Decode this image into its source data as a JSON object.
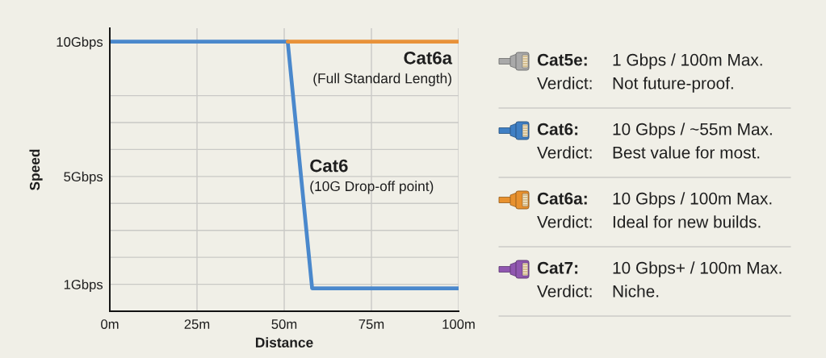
{
  "chart_data": [
    {
      "type": "line",
      "xlabel": "Distance",
      "ylabel": "Speed",
      "series": [
        {
          "name": "Cat6",
          "color": "#4a88cc",
          "x": [
            0,
            51,
            58,
            100
          ],
          "values": [
            10,
            10,
            0.85,
            0.85
          ]
        },
        {
          "name": "Cat6a",
          "color": "#e8923a",
          "x": [
            51,
            100
          ],
          "values": [
            10,
            10
          ]
        }
      ],
      "xlim": [
        0,
        100
      ],
      "xticks": [
        {
          "value": 0,
          "label": "0m"
        },
        {
          "value": 25,
          "label": "25m"
        },
        {
          "value": 50,
          "label": "50m"
        },
        {
          "value": 75,
          "label": "75m"
        },
        {
          "value": 100,
          "label": "100m"
        }
      ],
      "ylim": [
        0,
        10.5
      ],
      "yticks": [
        {
          "value": 1,
          "label": "1Gbps"
        },
        {
          "value": 2,
          "label": null
        },
        {
          "value": 3,
          "label": null
        },
        {
          "value": 4,
          "label": null
        },
        {
          "value": 5,
          "label": "5Gbps"
        },
        {
          "value": 6,
          "label": null
        },
        {
          "value": 7,
          "label": null
        },
        {
          "value": 8,
          "label": null
        },
        {
          "value": 10,
          "label": "10Gbps"
        }
      ],
      "grid": true,
      "annotations": [
        {
          "text": "(10G Drop-off point)",
          "x": 54,
          "y": 6
        },
        {
          "text": "(Full Standard Length)",
          "x": 100,
          "y": 10
        }
      ]
    },
    {
      "type": "other",
      "colors": [
        "#a9a9a9",
        "#3f7fc4",
        "#e8912e",
        "#9057b0"
      ],
      "annotations": [
        "Cat5e:",
        "1 Gbps / 100m Max.",
        "Verdict:",
        "Not future-proof.",
        "Cat6:",
        "10 Gbps / ~55m Max.",
        "Verdict:",
        "Best value for most.",
        "Cat6a:",
        "10 Gbps / 100m Max.",
        "Verdict:",
        "Ideal for new builds.",
        "Cat7:",
        "10 Gbps+ / 100m Max.",
        "Verdict:",
        "Niche."
      ]
    }
  ]
}
